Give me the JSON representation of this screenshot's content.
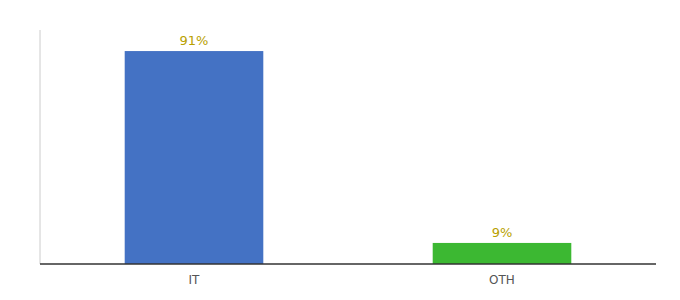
{
  "chart_data": {
    "type": "bar",
    "categories": [
      "IT",
      "OTH"
    ],
    "values": [
      91,
      9
    ],
    "value_labels": [
      "91%",
      "9%"
    ],
    "data_labels": true,
    "colors": [
      "#4472c4",
      "#3cb832"
    ],
    "ylim": [
      0,
      100
    ],
    "yticks": [],
    "tick_labels": "x",
    "grid": false
  }
}
